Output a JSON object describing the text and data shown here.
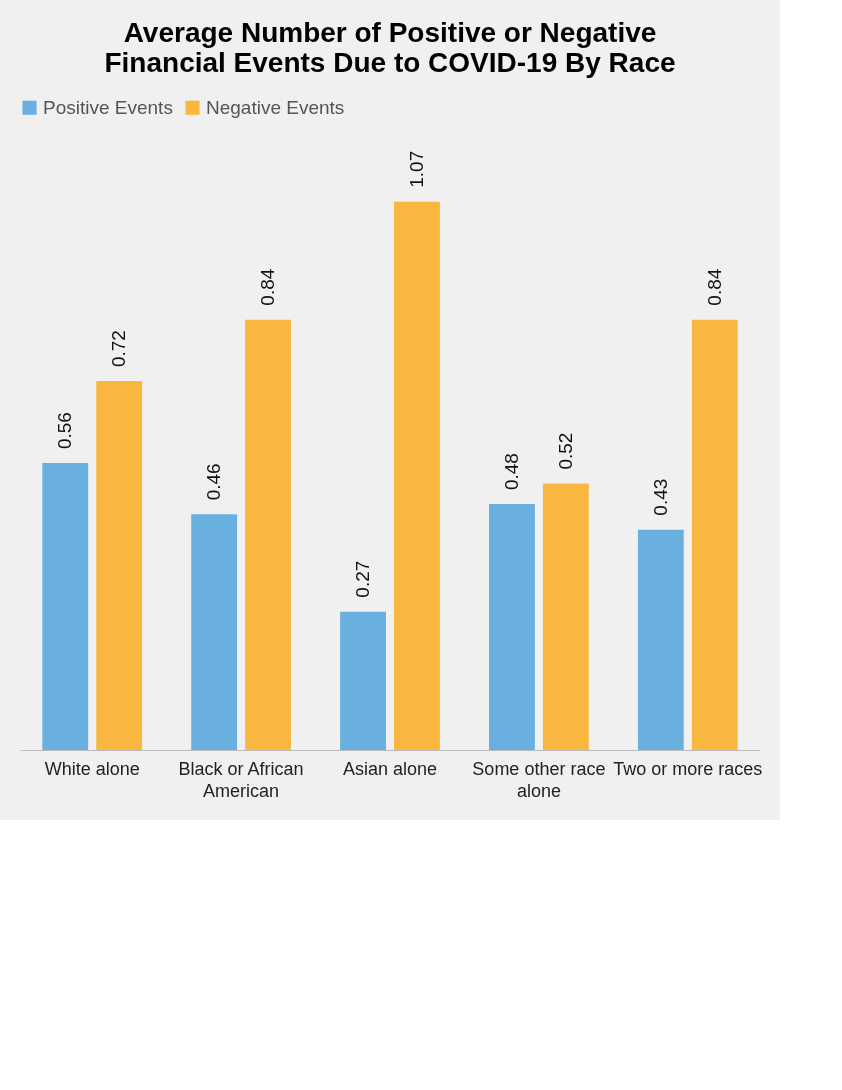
{
  "chart_data": {
    "type": "bar",
    "title": [
      "Average Number of Positive or Negative",
      "Financial Events Due to COVID-19 By Race"
    ],
    "categories": [
      "White alone",
      "Black or African American",
      "Asian alone",
      "Some other race alone",
      "Two or more races"
    ],
    "series": [
      {
        "name": "Positive Events",
        "color": "#69b0e1",
        "values": [
          0.56,
          0.46,
          0.27,
          0.48,
          0.43
        ]
      },
      {
        "name": "Negative Events",
        "color": "#f9b73f",
        "values": [
          0.72,
          0.84,
          1.07,
          0.52,
          0.84
        ]
      }
    ],
    "data_labels": true,
    "legend": "top",
    "grid": false
  }
}
